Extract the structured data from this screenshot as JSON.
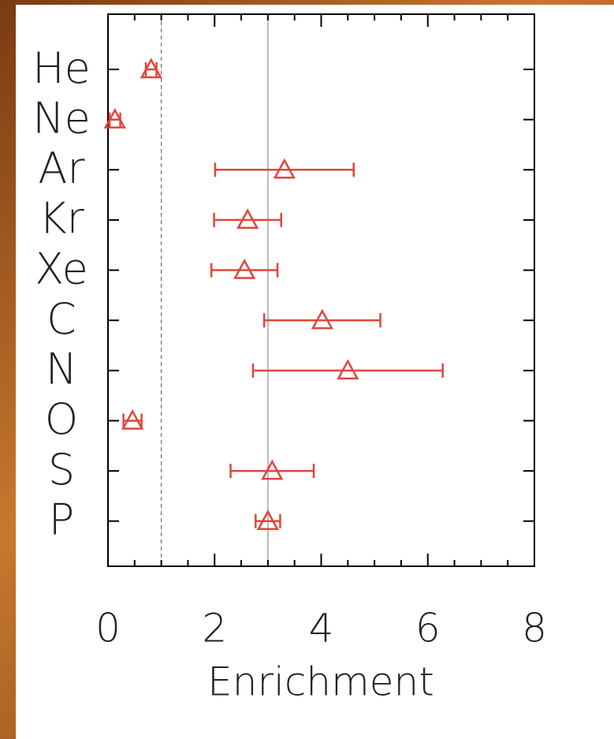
{
  "chart_data": {
    "type": "errorbar",
    "x_label": "Enrichment",
    "categories": [
      "He",
      "Ne",
      "Ar",
      "Kr",
      "Xe",
      "C",
      "N",
      "O",
      "S",
      "P"
    ],
    "values": [
      0.81,
      0.13,
      3.31,
      2.62,
      2.56,
      4.02,
      4.5,
      0.46,
      3.08,
      3.0
    ],
    "errors": [
      0.1,
      0.1,
      1.3,
      0.63,
      0.62,
      1.09,
      1.78,
      0.17,
      0.78,
      0.23
    ],
    "color": "#e0453c",
    "xlim": [
      0,
      8
    ],
    "xticks": [
      0,
      2,
      4,
      6,
      8
    ],
    "xminorticks": [
      0.5,
      1,
      1.5,
      2.5,
      3,
      3.5,
      4.5,
      5,
      5.5,
      6.5,
      7,
      7.5
    ],
    "reference_lines": [
      {
        "value": 1,
        "style": "dashed"
      },
      {
        "value": 3,
        "style": "solid"
      }
    ]
  }
}
